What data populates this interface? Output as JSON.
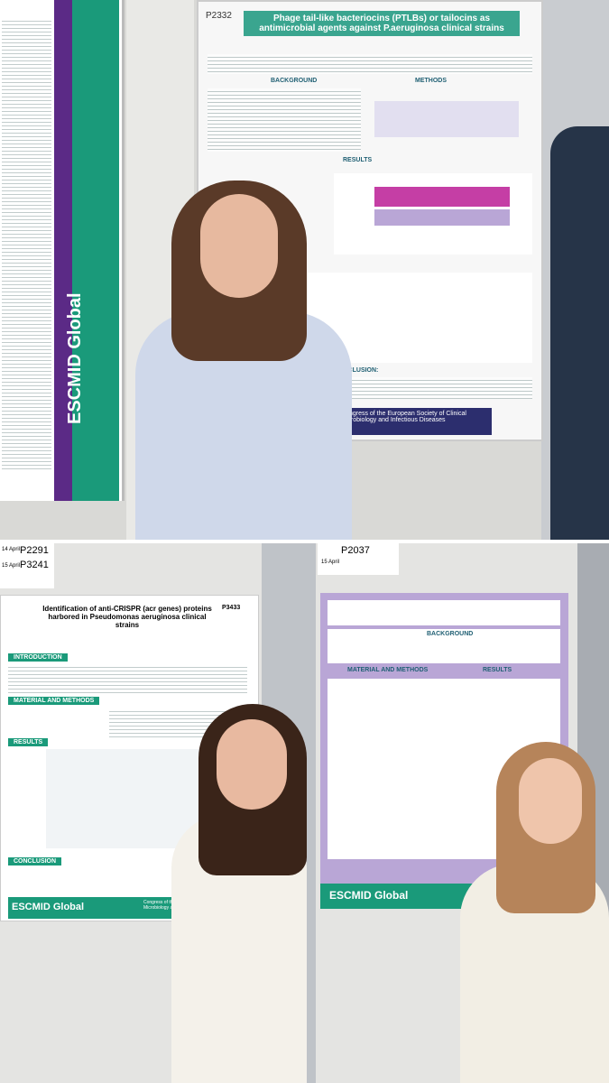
{
  "top_photo": {
    "left_poster": {
      "brand": "ESCMID Global"
    },
    "poster": {
      "code": "P2332",
      "title": "Phage tail-like bacteriocins (PTLBs) or tailocins as antimicrobial agents against P.aeruginosa clinical strains",
      "sections": [
        "BACKGROUND",
        "METHODS",
        "RESULTS",
        "CONCLUSION:"
      ],
      "footer": "Congress of the European Society of Clinical Microbiology and Infectious Diseases"
    }
  },
  "bottom_photo": {
    "board_labels": [
      {
        "date": "14 April",
        "code": "P2291"
      },
      {
        "date": "15 April",
        "code": "P3241"
      },
      {
        "date": "15 April",
        "code": "P2037"
      }
    ],
    "left_poster": {
      "code": "P3433",
      "title": "Identification of anti-CRISPR (acr genes) proteins harbored in Pseudomonas aeruginosa clinical strains",
      "sections": [
        "INTRODUCTION",
        "MATERIAL AND METHODS",
        "RESULTS",
        "CONCLUSION"
      ],
      "brand": "ESCMID Global",
      "footer": "Congress of the European Society of Clinical Microbiology and Infectious Diseases"
    },
    "right_poster": {
      "sections": [
        "BACKGROUND",
        "MATERIAL AND METHODS",
        "RESULTS"
      ],
      "brand": "ESCMID Global"
    }
  }
}
